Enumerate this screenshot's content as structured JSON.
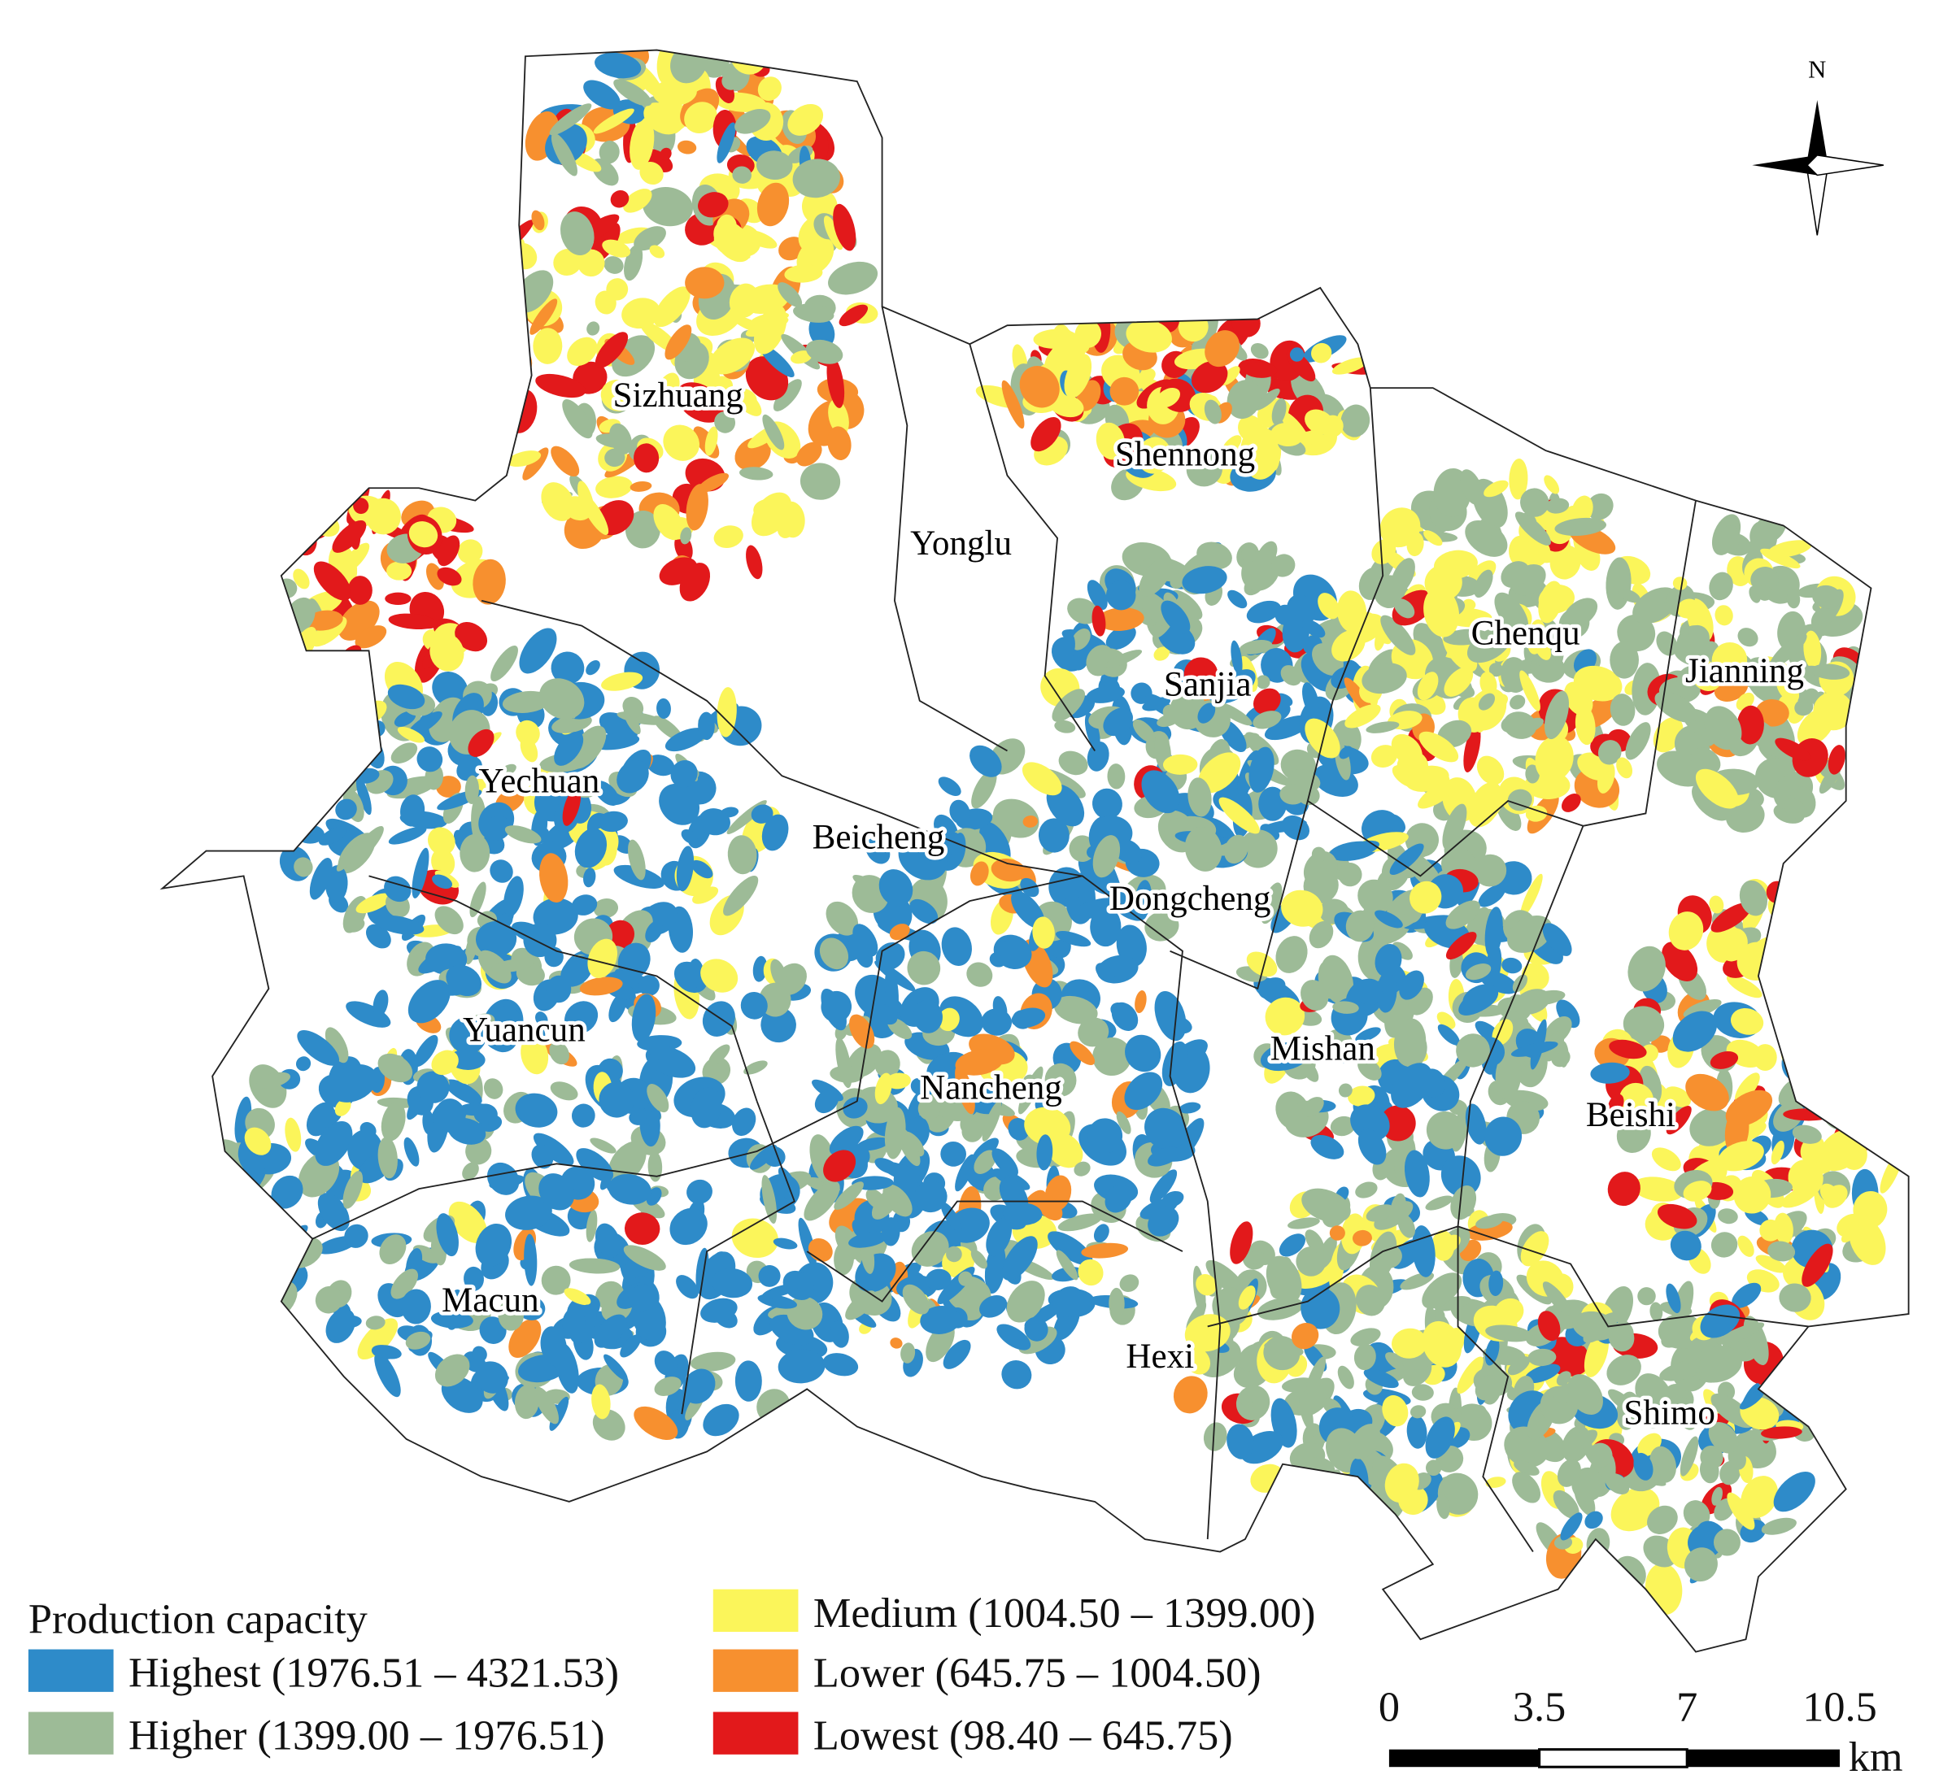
{
  "title": "Production capacity",
  "legend": [
    {
      "label": "Highest (1976.51 – 4321.53)",
      "color": "#2e8bc9"
    },
    {
      "label": "Higher (1399.00 – 1976.51)",
      "color": "#9dbb97"
    },
    {
      "label": "Medium (1004.50 – 1399.00)",
      "color": "#fbf55a"
    },
    {
      "label": "Lower (645.75 – 1004.50)",
      "color": "#f7902f"
    },
    {
      "label": "Lowest (98.40 – 645.75)",
      "color": "#e2191b"
    }
  ],
  "towns": [
    "Sizhuang",
    "Shennong",
    "Yonglu",
    "Chenqu",
    "Jianning",
    "Sanjia",
    "Yechuan",
    "Beicheng",
    "Dongcheng",
    "Yuancun",
    "Mishan",
    "Nancheng",
    "Beishi",
    "Macun",
    "Hexi",
    "Shimo"
  ],
  "north": "N",
  "scale_bar": {
    "ticks": [
      "0",
      "3.5",
      "7",
      "10.5"
    ],
    "unit": "km"
  }
}
